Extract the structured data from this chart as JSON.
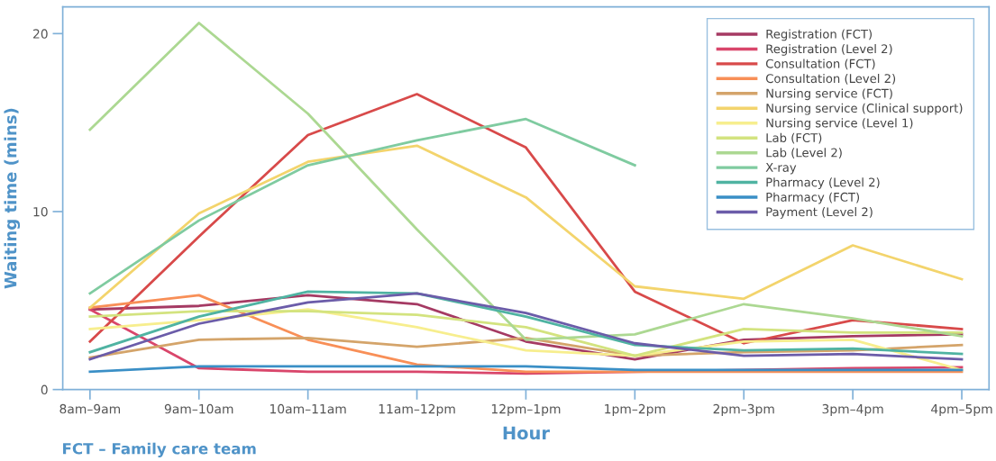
{
  "chart_data": {
    "type": "line",
    "xlabel": "Hour",
    "ylabel": "Waiting time (mins)",
    "categories": [
      "8am–9am",
      "9am–10am",
      "10am–11am",
      "11am–12pm",
      "12pm–1pm",
      "1pm–2pm",
      "2pm–3pm",
      "3pm–4pm",
      "4pm–5pm"
    ],
    "ylim": [
      0,
      21.5
    ],
    "yticks": [
      0,
      10,
      20
    ],
    "grid": false,
    "legend": "top right",
    "marker": "none",
    "line_style": "solid",
    "annotations": [
      "FCT – Family care team"
    ],
    "series": [
      {
        "name": "Registration (FCT)",
        "color": "#a53a63",
        "values": [
          4.5,
          4.7,
          5.3,
          4.8,
          2.7,
          1.7,
          2.8,
          3.0,
          3.1
        ]
      },
      {
        "name": "Registration (Level 2)",
        "color": "#d9466b",
        "values": [
          4.5,
          1.2,
          1.0,
          1.0,
          0.9,
          1.0,
          1.1,
          1.2,
          1.25
        ]
      },
      {
        "name": "Consultation (FCT)",
        "color": "#d84a4a",
        "values": [
          2.7,
          8.6,
          14.3,
          16.6,
          13.6,
          5.5,
          2.6,
          3.9,
          3.4
        ]
      },
      {
        "name": "Consultation (Level 2)",
        "color": "#f88f57",
        "values": [
          4.6,
          5.3,
          2.8,
          1.4,
          1.0,
          1.0,
          1.0,
          1.0,
          1.0
        ]
      },
      {
        "name": "Nursing service (FCT)",
        "color": "#d4a46a",
        "values": [
          1.8,
          2.8,
          2.9,
          2.4,
          2.9,
          1.9,
          2.1,
          2.2,
          2.5
        ]
      },
      {
        "name": "Nursing service (Clinical support)",
        "color": "#f3d46c",
        "values": [
          4.6,
          9.9,
          12.8,
          13.7,
          10.8,
          5.8,
          5.1,
          8.1,
          6.2
        ]
      },
      {
        "name": "Nursing service (Level 1)",
        "color": "#f7ee8e",
        "values": [
          3.4,
          3.9,
          4.5,
          3.5,
          2.2,
          1.9,
          2.7,
          2.8,
          1.1
        ]
      },
      {
        "name": "Lab (FCT)",
        "color": "#d3e37f",
        "values": [
          4.1,
          4.4,
          4.4,
          4.2,
          3.5,
          1.9,
          3.4,
          3.2,
          3.2
        ]
      },
      {
        "name": "Lab (Level 2)",
        "color": "#acd892",
        "values": [
          14.6,
          20.6,
          15.5,
          9.0,
          2.8,
          3.1,
          4.8,
          4.0,
          3.0
        ]
      },
      {
        "name": "X-ray",
        "color": "#7fcba0",
        "values": [
          5.4,
          9.5,
          12.6,
          14.0,
          15.2,
          12.6,
          null,
          null,
          null
        ]
      },
      {
        "name": "Pharmacy (Level 2)",
        "color": "#4fb3a2",
        "values": [
          2.1,
          4.1,
          5.5,
          5.4,
          4.1,
          2.5,
          2.2,
          2.3,
          2.0
        ]
      },
      {
        "name": "Pharmacy (FCT)",
        "color": "#3a8fc6",
        "values": [
          1.0,
          1.3,
          1.3,
          1.3,
          1.3,
          1.1,
          1.1,
          1.1,
          1.1
        ]
      },
      {
        "name": "Payment (Level 2)",
        "color": "#6b5ca9",
        "values": [
          1.7,
          3.7,
          4.9,
          5.4,
          4.3,
          2.6,
          1.9,
          2.0,
          1.7
        ]
      }
    ]
  }
}
